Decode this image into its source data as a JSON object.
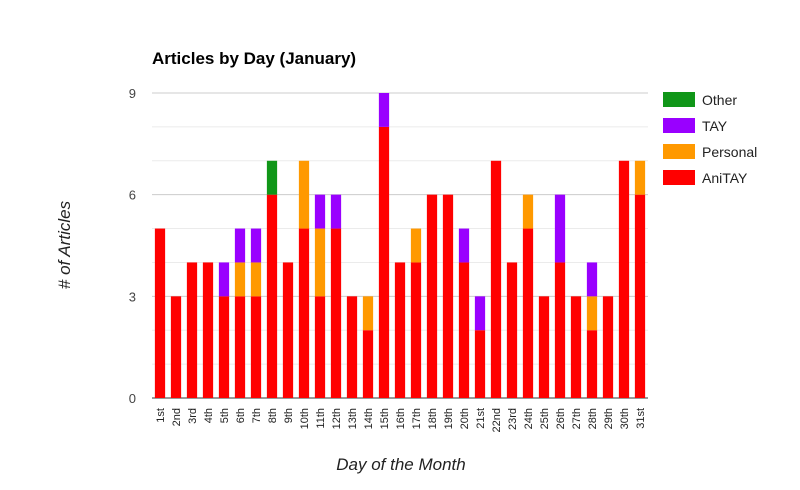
{
  "chart_data": {
    "type": "bar",
    "stacked": true,
    "title": "Articles by Day (January)",
    "xlabel": "Day of the Month",
    "ylabel": "# of Articles",
    "ylim": [
      0,
      9
    ],
    "yticks": [
      "0",
      "3",
      "6",
      "9"
    ],
    "grid": true,
    "legend_position": "right",
    "categories": [
      "1st",
      "2nd",
      "3rd",
      "4th",
      "5th",
      "6th",
      "7th",
      "8th",
      "9th",
      "10th",
      "11th",
      "12th",
      "13th",
      "14th",
      "15th",
      "16th",
      "17th",
      "18th",
      "19th",
      "20th",
      "21st",
      "22nd",
      "23rd",
      "24th",
      "25th",
      "26th",
      "27th",
      "28th",
      "29th",
      "30th",
      "31st"
    ],
    "series": [
      {
        "name": "AniTAY",
        "color": "#ff0000",
        "values": [
          5,
          3,
          4,
          4,
          3,
          3,
          3,
          6,
          4,
          5,
          3,
          5,
          3,
          2,
          8,
          4,
          4,
          6,
          6,
          4,
          2,
          7,
          4,
          5,
          3,
          4,
          3,
          2,
          3,
          7,
          6
        ]
      },
      {
        "name": "Personal",
        "color": "#ff9900",
        "values": [
          0,
          0,
          0,
          0,
          0,
          1,
          1,
          0,
          0,
          2,
          2,
          0,
          0,
          1,
          0,
          0,
          1,
          0,
          0,
          0,
          0,
          0,
          0,
          1,
          0,
          0,
          0,
          1,
          0,
          0,
          1
        ]
      },
      {
        "name": "TAY",
        "color": "#9900ff",
        "values": [
          0,
          0,
          0,
          0,
          1,
          1,
          1,
          0,
          0,
          0,
          1,
          1,
          0,
          0,
          1,
          0,
          0,
          0,
          0,
          1,
          1,
          0,
          0,
          0,
          0,
          2,
          0,
          1,
          0,
          0,
          0
        ]
      },
      {
        "name": "Other",
        "color": "#109618",
        "values": [
          0,
          0,
          0,
          0,
          0,
          0,
          0,
          1,
          0,
          0,
          0,
          0,
          0,
          0,
          0,
          0,
          0,
          0,
          0,
          0,
          0,
          0,
          0,
          0,
          0,
          0,
          0,
          0,
          0,
          0,
          0
        ]
      }
    ],
    "legend_order": [
      "Other",
      "TAY",
      "Personal",
      "AniTAY"
    ]
  }
}
